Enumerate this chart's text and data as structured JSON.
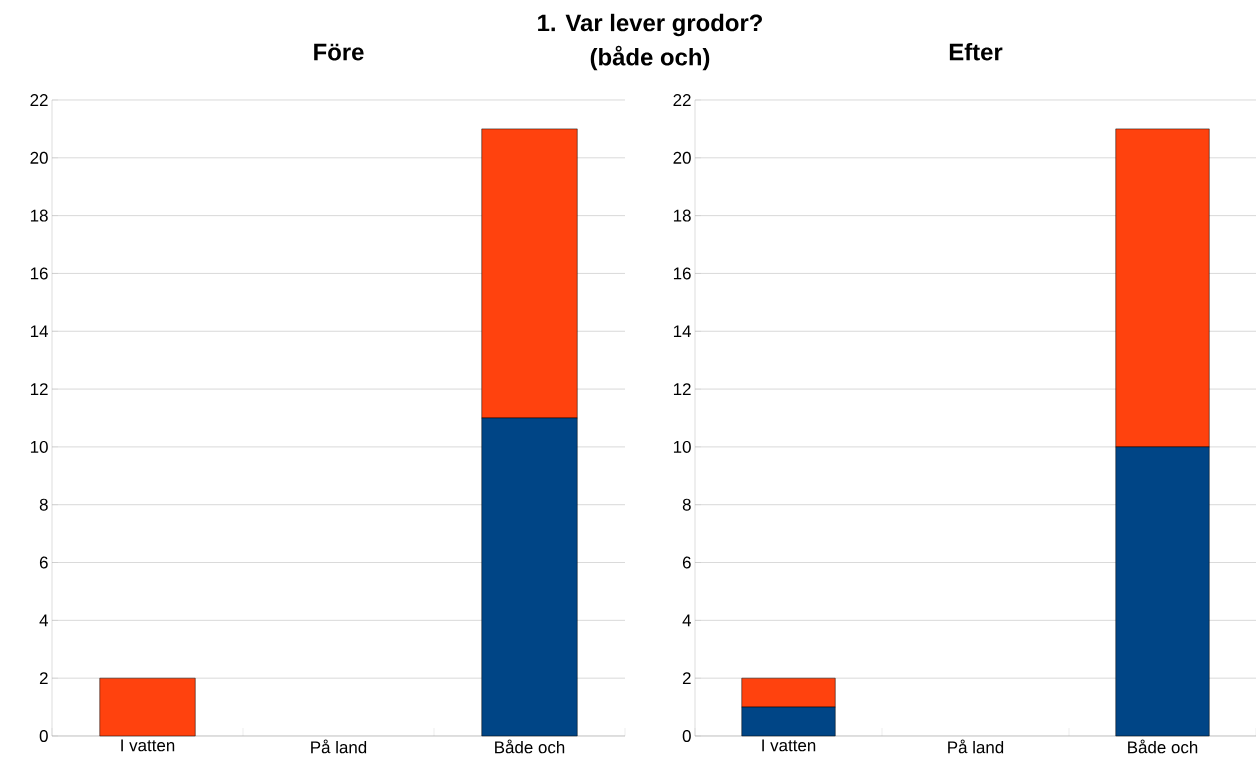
{
  "chart_data": [
    {
      "type": "bar",
      "stacked": true,
      "title": "Före",
      "annotations": [
        "1. Var lever grodor?",
        "(både och)"
      ],
      "categories": [
        "I vatten",
        "På land",
        "Både och"
      ],
      "series": [
        {
          "color": "#004586",
          "values": [
            0,
            0,
            11
          ]
        },
        {
          "color": "#ff420e",
          "values": [
            2,
            0,
            10
          ]
        }
      ],
      "ylim": [
        0,
        22
      ],
      "yticks": [
        0,
        2,
        4,
        6,
        8,
        10,
        12,
        14,
        16,
        18,
        20,
        22
      ],
      "grid": "y"
    },
    {
      "type": "bar",
      "stacked": true,
      "title": "Efter",
      "categories": [
        "I vatten",
        "På land",
        "Både och"
      ],
      "series": [
        {
          "color": "#004586",
          "values": [
            1,
            0,
            10
          ]
        },
        {
          "color": "#ff420e",
          "values": [
            1,
            0,
            11
          ]
        }
      ],
      "ylim": [
        0,
        22
      ],
      "yticks": [
        0,
        2,
        4,
        6,
        8,
        10,
        12,
        14,
        16,
        18,
        20,
        22
      ],
      "grid": "y"
    }
  ]
}
